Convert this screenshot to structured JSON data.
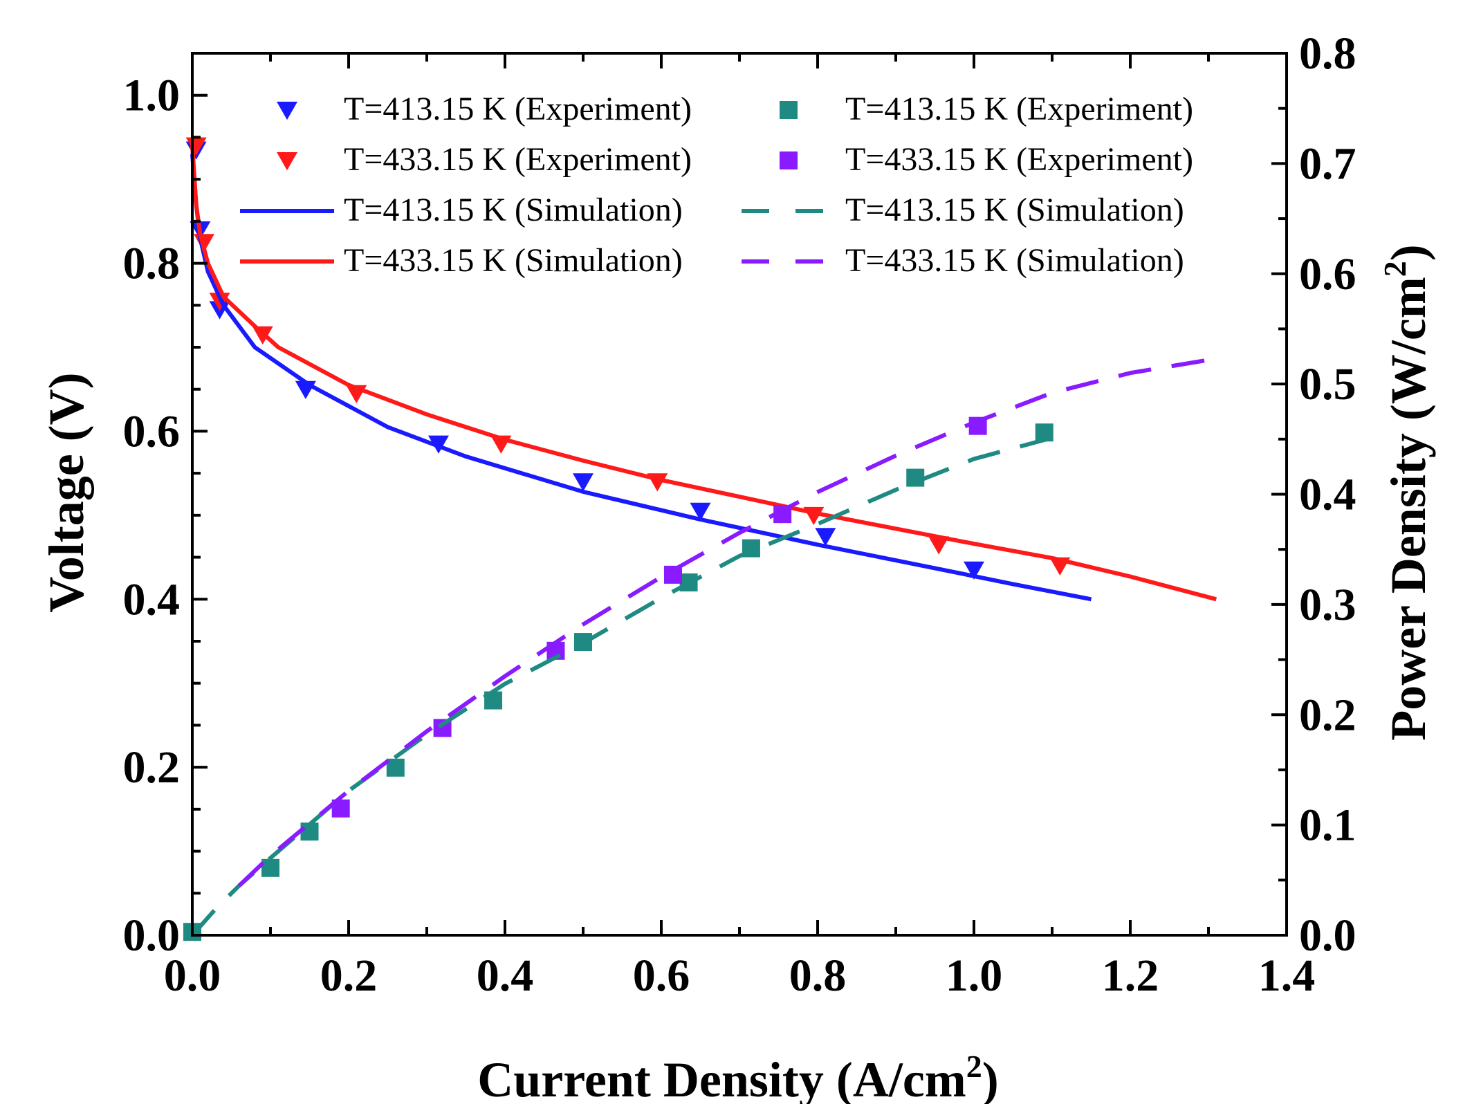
{
  "chart_data": {
    "type": "line",
    "xlabel": "Current Density (A/cm",
    "xlabel_sup": "2",
    "xlabel_end": ")",
    "ylabel": "Voltage (V)",
    "y2label": "Power Density (W/cm",
    "y2label_sup": "2",
    "y2label_end": ")",
    "xlim": [
      0,
      1.4
    ],
    "ylim": [
      0,
      1.05
    ],
    "y2lim": [
      0,
      0.8
    ],
    "xticks": [
      "0.0",
      "0.2",
      "0.4",
      "0.6",
      "0.8",
      "1.0",
      "1.2",
      "1.4"
    ],
    "yticks": [
      "0.0",
      "0.2",
      "0.4",
      "0.6",
      "0.8",
      "1.0"
    ],
    "y2ticks": [
      "0.0",
      "0.1",
      "0.2",
      "0.3",
      "0.4",
      "0.5",
      "0.6",
      "0.7",
      "0.8"
    ],
    "colors": {
      "blue": "#1a1aff",
      "red": "#ff1a1a",
      "teal": "#1f8a82",
      "purple": "#8a1aff"
    },
    "series": [
      {
        "name": "T=413.15 K (Experiment)",
        "axis": "left",
        "kind": "marker",
        "marker": "triangle-down",
        "color": "#1a1aff",
        "x": [
          0.005,
          0.01,
          0.035,
          0.145,
          0.315,
          0.5,
          0.65,
          0.81,
          1.0
        ],
        "y": [
          0.935,
          0.84,
          0.745,
          0.65,
          0.585,
          0.54,
          0.505,
          0.475,
          0.435
        ]
      },
      {
        "name": "T=433.15 K (Experiment)",
        "axis": "left",
        "kind": "marker",
        "marker": "triangle-down",
        "color": "#ff1a1a",
        "x": [
          0.005,
          0.015,
          0.035,
          0.09,
          0.21,
          0.395,
          0.595,
          0.795,
          0.955,
          1.11
        ],
        "y": [
          0.94,
          0.825,
          0.755,
          0.715,
          0.645,
          0.585,
          0.54,
          0.5,
          0.465,
          0.44
        ]
      },
      {
        "name": "T=413.15 K (Simulation)",
        "axis": "left",
        "kind": "line",
        "dash": "solid",
        "color": "#1a1aff",
        "x": [
          0.0,
          0.005,
          0.01,
          0.02,
          0.04,
          0.08,
          0.15,
          0.25,
          0.35,
          0.5,
          0.65,
          0.8,
          0.95,
          1.05,
          1.15
        ],
        "y": [
          0.93,
          0.87,
          0.83,
          0.79,
          0.75,
          0.7,
          0.655,
          0.605,
          0.57,
          0.528,
          0.495,
          0.465,
          0.437,
          0.418,
          0.4
        ]
      },
      {
        "name": "T=433.15 K (Simulation)",
        "axis": "left",
        "kind": "line",
        "dash": "solid",
        "color": "#ff1a1a",
        "x": [
          0.0,
          0.005,
          0.01,
          0.02,
          0.04,
          0.08,
          0.11,
          0.2,
          0.3,
          0.4,
          0.5,
          0.6,
          0.7,
          0.8,
          0.9,
          1.0,
          1.1,
          1.2,
          1.31
        ],
        "y": [
          0.94,
          0.87,
          0.835,
          0.8,
          0.76,
          0.725,
          0.7,
          0.655,
          0.62,
          0.59,
          0.565,
          0.542,
          0.522,
          0.502,
          0.484,
          0.466,
          0.449,
          0.427,
          0.4
        ]
      },
      {
        "name": "T=413.15 K (Experiment)",
        "axis": "right",
        "kind": "marker",
        "marker": "square",
        "color": "#1f8a82",
        "x": [
          0.0,
          0.1,
          0.15,
          0.26,
          0.385,
          0.5,
          0.635,
          0.715,
          0.925,
          1.09
        ],
        "y": [
          0.003,
          0.061,
          0.094,
          0.152,
          0.213,
          0.266,
          0.32,
          0.351,
          0.415,
          0.456
        ]
      },
      {
        "name": "T=433.15 K (Experiment)",
        "axis": "right",
        "kind": "marker",
        "marker": "square",
        "color": "#8a1aff",
        "x": [
          0.19,
          0.32,
          0.465,
          0.615,
          0.755,
          1.005
        ],
        "y": [
          0.115,
          0.188,
          0.258,
          0.327,
          0.382,
          0.462
        ]
      },
      {
        "name": "T=413.15 K (Simulation)",
        "axis": "right",
        "kind": "line",
        "dash": "dashed",
        "color": "#1f8a82",
        "x": [
          0.0,
          0.03,
          0.06,
          0.1,
          0.2,
          0.3,
          0.4,
          0.5,
          0.6,
          0.7,
          0.8,
          0.9,
          1.0,
          1.12
        ],
        "y": [
          0.0,
          0.024,
          0.045,
          0.07,
          0.131,
          0.182,
          0.228,
          0.265,
          0.306,
          0.344,
          0.373,
          0.404,
          0.432,
          0.455
        ]
      },
      {
        "name": "T=433.15 K (Simulation)",
        "axis": "right",
        "kind": "line",
        "dash": "dashed",
        "color": "#8a1aff",
        "x": [
          0.06,
          0.1,
          0.2,
          0.3,
          0.4,
          0.5,
          0.6,
          0.7,
          0.8,
          0.9,
          1.0,
          1.1,
          1.2,
          1.31
        ],
        "y": [
          0.045,
          0.072,
          0.131,
          0.185,
          0.235,
          0.282,
          0.325,
          0.365,
          0.402,
          0.435,
          0.465,
          0.492,
          0.51,
          0.523
        ]
      }
    ],
    "legend": {
      "placement": "top-right",
      "columns": [
        [
          "T=413.15 K (Experiment)",
          "T=433.15 K (Experiment)",
          "T=413.15 K (Simulation)",
          "T=433.15 K (Simulation)"
        ],
        [
          "T=413.15 K (Experiment)",
          "T=433.15 K (Experiment)",
          "T=413.15 K (Simulation)",
          "T=433.15 K (Simulation)"
        ]
      ]
    }
  }
}
